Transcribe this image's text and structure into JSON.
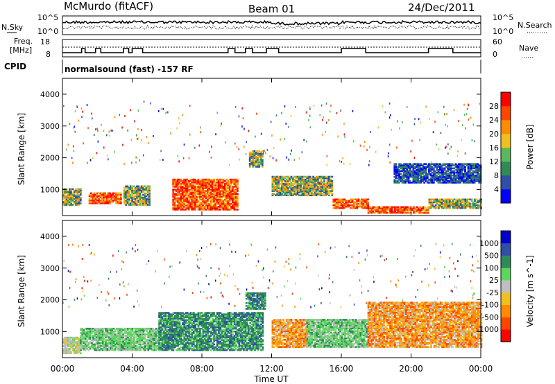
{
  "header": {
    "station": "McMurdo (fitACF)",
    "beam": "Beam 01",
    "date": "24/Dec/2011"
  },
  "noise_panel": {
    "left_label": "N.Sky",
    "right_label": "N.Search",
    "left_ticks": [
      "10^5",
      "10^0"
    ],
    "right_ticks": [
      "10^5",
      "10^0"
    ]
  },
  "freq_panel": {
    "left_label_1": "Freq.",
    "left_label_2": "[MHz]",
    "right_label": "Nave",
    "left_ticks": [
      "18",
      "8"
    ],
    "right_ticks": [
      "60",
      "0"
    ]
  },
  "cpid": {
    "label": "CPID",
    "text": "normalsound (fast) -157 RF"
  },
  "x_axis": {
    "label": "Time UT",
    "ticks": [
      "00:00",
      "04:00",
      "08:00",
      "12:00",
      "16:00",
      "20:00",
      "00:00"
    ]
  },
  "colors": {
    "power": [
      "#0000ff",
      "#2f4fa8",
      "#2e8b57",
      "#5cb85c",
      "#f0c020",
      "#ff8c00",
      "#ff4500",
      "#ff0000"
    ],
    "velocity": [
      "#ff0000",
      "#ff4500",
      "#ff8c00",
      "#f0c020",
      "#bfbfbf",
      "#5cd65c",
      "#2e8b57",
      "#2f4fa8",
      "#0000cc"
    ]
  },
  "chart_data": [
    {
      "type": "heatmap",
      "title": "",
      "ylabel": "Slant Range [km]",
      "xlabel": "",
      "x_range_hours": [
        0,
        24
      ],
      "ylim": [
        180,
        4500
      ],
      "y_ticks": [
        "1000",
        "2000",
        "3000",
        "4000"
      ],
      "colorbar": {
        "label": "Power [dB]",
        "ticks": [
          "4",
          "8",
          "12",
          "16",
          "20",
          "24",
          "28"
        ]
      },
      "features": [
        {
          "start_h": 0.0,
          "end_h": 1.0,
          "range_min": 500,
          "range_max": 1000,
          "level": "mid"
        },
        {
          "start_h": 1.5,
          "end_h": 3.3,
          "range_min": 550,
          "range_max": 900,
          "level": "high"
        },
        {
          "start_h": 3.5,
          "end_h": 5.0,
          "range_min": 500,
          "range_max": 1100,
          "level": "mid"
        },
        {
          "start_h": 6.3,
          "end_h": 10.0,
          "range_min": 350,
          "range_max": 1300,
          "level": "high"
        },
        {
          "start_h": 10.7,
          "end_h": 11.5,
          "range_min": 1700,
          "range_max": 2200,
          "level": "mid"
        },
        {
          "start_h": 12.0,
          "end_h": 15.5,
          "range_min": 800,
          "range_max": 1400,
          "level": "mid"
        },
        {
          "start_h": 15.5,
          "end_h": 17.5,
          "range_min": 400,
          "range_max": 700,
          "level": "high"
        },
        {
          "start_h": 17.5,
          "end_h": 21.0,
          "range_min": 250,
          "range_max": 450,
          "level": "high"
        },
        {
          "start_h": 19.0,
          "end_h": 24.0,
          "range_min": 1200,
          "range_max": 1800,
          "level": "low"
        },
        {
          "start_h": 21.0,
          "end_h": 24.0,
          "range_min": 400,
          "range_max": 700,
          "level": "mid"
        }
      ]
    },
    {
      "type": "heatmap",
      "title": "",
      "ylabel": "Slant Range [km]",
      "xlabel": "Time UT",
      "x_range_hours": [
        0,
        24
      ],
      "ylim": [
        180,
        4500
      ],
      "y_ticks": [
        "1000",
        "2000",
        "3000",
        "4000"
      ],
      "colorbar": {
        "label": "Velocity [m s^-1]",
        "ticks": [
          "1000",
          "500",
          "100",
          "25",
          "-25",
          "-100",
          "-500",
          "-1000"
        ]
      },
      "features": [
        {
          "start_h": 0.0,
          "end_h": 1.0,
          "range_min": 300,
          "range_max": 800,
          "level": "near-zero"
        },
        {
          "start_h": 1.0,
          "end_h": 5.5,
          "range_min": 400,
          "range_max": 1100,
          "level": "positive"
        },
        {
          "start_h": 5.5,
          "end_h": 11.5,
          "range_min": 400,
          "range_max": 1600,
          "level": "positive-strong"
        },
        {
          "start_h": 10.5,
          "end_h": 11.6,
          "range_min": 1700,
          "range_max": 2200,
          "level": "positive-strong"
        },
        {
          "start_h": 12.0,
          "end_h": 14.0,
          "range_min": 500,
          "range_max": 1400,
          "level": "negative"
        },
        {
          "start_h": 14.0,
          "end_h": 17.5,
          "range_min": 500,
          "range_max": 1400,
          "level": "positive"
        },
        {
          "start_h": 17.5,
          "end_h": 24.0,
          "range_min": 500,
          "range_max": 1900,
          "level": "negative"
        }
      ]
    }
  ]
}
